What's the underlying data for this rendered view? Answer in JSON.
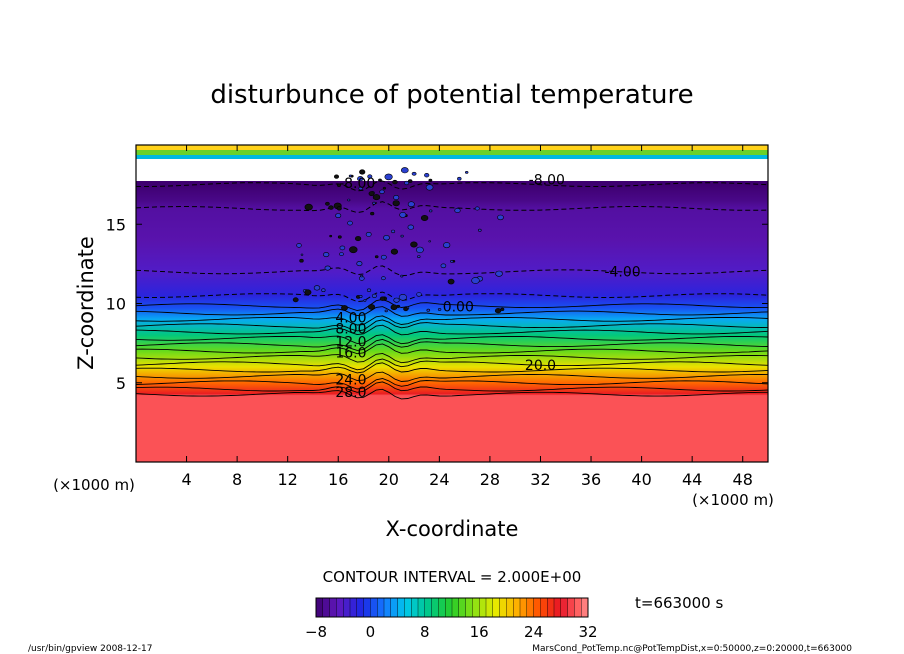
{
  "chart_data": {
    "type": "heatmap",
    "title": "disturbunce of potential temperature",
    "xlabel": "X-coordinate",
    "ylabel": "Z-coordinate",
    "x_unit_left": "(×1000 m)",
    "x_unit_right": "(×1000 m)",
    "xlim": [
      0,
      50
    ],
    "ylim": [
      0,
      20
    ],
    "x_ticks": [
      4,
      8,
      12,
      16,
      20,
      24,
      28,
      32,
      36,
      40,
      44,
      48
    ],
    "y_ticks": [
      5,
      10,
      15
    ],
    "contour_interval_text": "CONTOUR INTERVAL = 2.000E+00",
    "time_text": "t=663000 s",
    "colorbar": {
      "min": -8,
      "max": 32,
      "ticks": [
        -8,
        0,
        8,
        16,
        24,
        32
      ],
      "tick_labels": [
        "−8",
        "0",
        "8",
        "16",
        "24",
        "32"
      ]
    },
    "contour_labels": [
      {
        "text": "-8.00",
        "x": 17.5,
        "z": 17.3
      },
      {
        "text": "-8.00",
        "x": 32.5,
        "z": 17.5
      },
      {
        "text": "-4.00",
        "x": 38.5,
        "z": 11.7
      },
      {
        "text": "0.00",
        "x": 25.5,
        "z": 9.5
      },
      {
        "text": "4.00",
        "x": 17.0,
        "z": 8.8
      },
      {
        "text": "8.00",
        "x": 17.0,
        "z": 8.1
      },
      {
        "text": "12.0",
        "x": 17.0,
        "z": 7.3
      },
      {
        "text": "16.0",
        "x": 17.0,
        "z": 6.6
      },
      {
        "text": "20.0",
        "x": 32.0,
        "z": 5.8
      },
      {
        "text": "24.0",
        "x": 17.0,
        "z": 4.9
      },
      {
        "text": "28.0",
        "x": 17.0,
        "z": 4.1
      }
    ],
    "profile": [
      {
        "z": 0.0,
        "value": 30.0
      },
      {
        "z": 4.2,
        "value": 30.0
      },
      {
        "z": 4.3,
        "value": 27.5
      },
      {
        "z": 5.0,
        "value": 24.0
      },
      {
        "z": 6.0,
        "value": 19.0
      },
      {
        "z": 7.0,
        "value": 14.0
      },
      {
        "z": 8.0,
        "value": 9.0
      },
      {
        "z": 9.0,
        "value": 4.0
      },
      {
        "z": 9.7,
        "value": 0.5
      },
      {
        "z": 10.5,
        "value": -2.0
      },
      {
        "z": 12.0,
        "value": -4.0
      },
      {
        "z": 14.0,
        "value": -5.5
      },
      {
        "z": 16.0,
        "value": -6.0
      },
      {
        "z": 16.5,
        "value": -7.0
      },
      {
        "z": 17.5,
        "value": -8.0
      }
    ],
    "grid": false
  },
  "footer": {
    "left": "/usr/bin/gpview   2008-12-17",
    "right": "MarsCond_PotTemp.nc@PotTempDist,x=0:50000,z=0:20000,t=663000"
  },
  "colors": {
    "background": "#ffffff",
    "floor": "#ff6a6a",
    "contour": "#000000"
  }
}
